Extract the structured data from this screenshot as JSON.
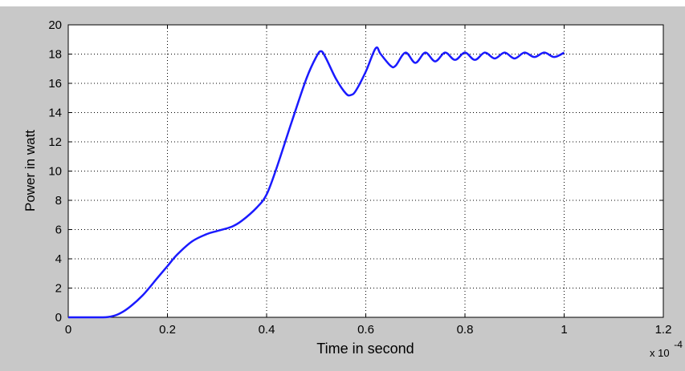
{
  "chart_data": {
    "type": "line",
    "title": "",
    "xlabel": "Time in second",
    "ylabel": "Power in watt",
    "x_multiplier_label": {
      "base": "x 10",
      "exponent": "-4"
    },
    "xlim": [
      0,
      1.2
    ],
    "ylim": [
      0,
      20
    ],
    "xticks": [
      0,
      0.2,
      0.4,
      0.6,
      0.8,
      1,
      1.2
    ],
    "xtick_labels": [
      "0",
      "0.2",
      "0.4",
      "0.6",
      "0.8",
      "1",
      "1.2"
    ],
    "yticks": [
      0,
      2,
      4,
      6,
      8,
      10,
      12,
      14,
      16,
      18,
      20
    ],
    "ytick_labels": [
      "0",
      "2",
      "4",
      "6",
      "8",
      "10",
      "12",
      "14",
      "16",
      "18",
      "20"
    ],
    "grid": true,
    "colors": {
      "line": "#1a1aff",
      "figure_bg": "#c8c8c8",
      "axes_bg": "#ffffff"
    },
    "series": [
      {
        "x": [
          0,
          0.06,
          0.08,
          0.1,
          0.12,
          0.15,
          0.18,
          0.2,
          0.22,
          0.25,
          0.28,
          0.3,
          0.33,
          0.35,
          0.38,
          0.4,
          0.42,
          0.45,
          0.48,
          0.5,
          0.51,
          0.52,
          0.54,
          0.56,
          0.57,
          0.58,
          0.6,
          0.62,
          0.63,
          0.65,
          0.66,
          0.68,
          0.7,
          0.72,
          0.74,
          0.76,
          0.78,
          0.8,
          0.82,
          0.84,
          0.86,
          0.88,
          0.9,
          0.92,
          0.94,
          0.96,
          0.98,
          1.0
        ],
        "y": [
          0,
          0,
          0.02,
          0.2,
          0.6,
          1.5,
          2.7,
          3.5,
          4.3,
          5.2,
          5.7,
          5.9,
          6.2,
          6.6,
          7.5,
          8.4,
          10.2,
          13.3,
          16.3,
          17.8,
          18.2,
          17.7,
          16.3,
          15.3,
          15.2,
          15.5,
          16.8,
          18.4,
          18.0,
          17.2,
          17.2,
          18.1,
          17.4,
          18.1,
          17.5,
          18.1,
          17.6,
          18.1,
          17.6,
          18.1,
          17.7,
          18.1,
          17.7,
          18.1,
          17.8,
          18.1,
          17.8,
          18.1
        ]
      }
    ]
  }
}
